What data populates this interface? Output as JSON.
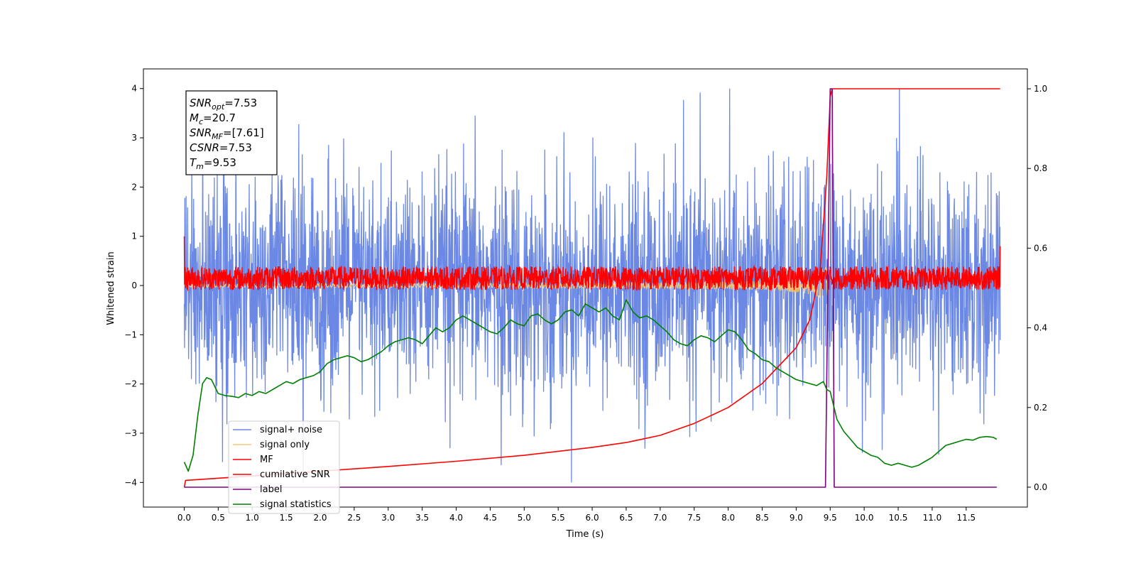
{
  "chart_data": {
    "type": "line",
    "xlabel": "Time (s)",
    "ylabel_left": "Whitened strain",
    "ylim_left": [
      -4.5,
      4.4
    ],
    "ylim_right": [
      -0.05,
      1.05
    ],
    "xlim": [
      -0.6,
      12.4
    ],
    "x_ticks": [
      "0.0",
      "0.5",
      "1.0",
      "1.5",
      "2.0",
      "2.5",
      "3.0",
      "3.5",
      "4.0",
      "4.5",
      "5.0",
      "5.5",
      "6.0",
      "6.5",
      "7.0",
      "7.5",
      "8.0",
      "8.5",
      "9.0",
      "9.5",
      "10.0",
      "10.5",
      "11.0",
      "11.5"
    ],
    "x_tick_values": [
      0.0,
      0.5,
      1.0,
      1.5,
      2.0,
      2.5,
      3.0,
      3.5,
      4.0,
      4.5,
      5.0,
      5.5,
      6.0,
      6.5,
      7.0,
      7.5,
      8.0,
      8.5,
      9.0,
      9.5,
      10.0,
      10.5,
      11.0,
      11.5
    ],
    "y_ticks_left": [
      "4",
      "3",
      "2",
      "1",
      "0",
      "−1",
      "−2",
      "−3",
      "−4"
    ],
    "y_tick_values_left": [
      4,
      3,
      2,
      1,
      0,
      -1,
      -2,
      -3,
      -4
    ],
    "y_ticks_right": [
      "1.0",
      "0.8",
      "0.6",
      "0.4",
      "0.2",
      "0.0"
    ],
    "y_tick_values_right": [
      1.0,
      0.8,
      0.6,
      0.4,
      0.2,
      0.0
    ],
    "legend_location": "bottom-left",
    "annotation": {
      "lines": [
        {
          "main": "SNR",
          "sub": "opt",
          "rest": "=7.53"
        },
        {
          "main": "M",
          "sub": "c",
          "rest": "=20.7"
        },
        {
          "main": "SNR",
          "sub": "MF",
          "rest": "=[7.61]"
        },
        {
          "main": "CSNR",
          "sub": "",
          "rest": "=7.53"
        },
        {
          "main": "T",
          "sub": "m",
          "rest": "=9.53"
        }
      ]
    },
    "series": [
      {
        "name": "signal+ noise",
        "color": "#6b88e4",
        "axis": "left",
        "kind": "noise",
        "x_range": [
          0.0,
          12.0
        ],
        "envelope_abs_max": 4.0,
        "typical_std": 1.1
      },
      {
        "name": "signal only",
        "color": "#f5c97a",
        "axis": "left",
        "kind": "chirp",
        "x_range": [
          0.0,
          9.55
        ],
        "peak_time": 9.5,
        "peak_amplitude": 0.9
      },
      {
        "name": "MF",
        "color": "#ff0000",
        "axis": "left",
        "kind": "noise",
        "x_range": [
          0.0,
          12.0
        ],
        "band": [
          -0.15,
          0.45
        ]
      },
      {
        "name": "cumilative SNR",
        "color": "#ff0000",
        "axis": "right",
        "x": [
          0.0,
          0.02,
          1.0,
          2.0,
          3.0,
          4.0,
          5.0,
          6.0,
          6.5,
          7.0,
          7.5,
          8.0,
          8.5,
          9.0,
          9.2,
          9.35,
          9.45,
          9.5,
          9.53,
          9.6,
          12.0
        ],
        "y": [
          0.0,
          0.017,
          0.028,
          0.04,
          0.052,
          0.065,
          0.08,
          0.1,
          0.112,
          0.13,
          0.16,
          0.2,
          0.26,
          0.35,
          0.42,
          0.54,
          0.78,
          0.98,
          1.0,
          1.0,
          1.0
        ]
      },
      {
        "name": "label",
        "color": "#800080",
        "axis": "right",
        "x": [
          0.0,
          9.43,
          9.5,
          9.53,
          9.56,
          11.0,
          11.95
        ],
        "y": [
          0.0,
          0.0,
          1.0,
          1.0,
          0.0,
          0.0,
          0.0
        ]
      },
      {
        "name": "signal statistics",
        "color": "#008000",
        "axis": "right",
        "x": [
          0.0,
          0.06,
          0.13,
          0.2,
          0.27,
          0.33,
          0.4,
          0.5,
          0.6,
          0.7,
          0.8,
          0.9,
          1.0,
          1.1,
          1.2,
          1.3,
          1.4,
          1.5,
          1.6,
          1.7,
          1.8,
          1.9,
          2.0,
          2.1,
          2.2,
          2.3,
          2.4,
          2.5,
          2.6,
          2.7,
          2.8,
          2.9,
          3.0,
          3.05,
          3.1,
          3.2,
          3.3,
          3.4,
          3.5,
          3.6,
          3.7,
          3.8,
          3.9,
          4.0,
          4.1,
          4.2,
          4.3,
          4.4,
          4.5,
          4.6,
          4.7,
          4.8,
          4.9,
          5.0,
          5.1,
          5.2,
          5.3,
          5.4,
          5.5,
          5.6,
          5.7,
          5.8,
          5.9,
          6.0,
          6.1,
          6.2,
          6.3,
          6.4,
          6.5,
          6.6,
          6.7,
          6.8,
          6.9,
          7.0,
          7.1,
          7.2,
          7.3,
          7.4,
          7.5,
          7.6,
          7.7,
          7.8,
          7.9,
          8.0,
          8.1,
          8.2,
          8.3,
          8.4,
          8.5,
          8.6,
          8.7,
          8.8,
          8.9,
          9.0,
          9.1,
          9.2,
          9.3,
          9.35,
          9.4,
          9.45,
          9.5,
          9.6,
          9.7,
          9.8,
          9.9,
          10.0,
          10.1,
          10.2,
          10.3,
          10.4,
          10.5,
          10.6,
          10.7,
          10.8,
          10.9,
          11.0,
          11.1,
          11.2,
          11.3,
          11.4,
          11.5,
          11.6,
          11.7,
          11.8,
          11.9,
          11.95
        ],
        "y": [
          0.063,
          0.04,
          0.08,
          0.18,
          0.26,
          0.275,
          0.27,
          0.235,
          0.23,
          0.228,
          0.225,
          0.235,
          0.23,
          0.24,
          0.235,
          0.245,
          0.255,
          0.265,
          0.26,
          0.27,
          0.275,
          0.28,
          0.29,
          0.31,
          0.32,
          0.325,
          0.33,
          0.325,
          0.315,
          0.32,
          0.33,
          0.34,
          0.355,
          0.36,
          0.365,
          0.37,
          0.375,
          0.37,
          0.36,
          0.38,
          0.4,
          0.39,
          0.4,
          0.42,
          0.43,
          0.42,
          0.41,
          0.4,
          0.39,
          0.385,
          0.4,
          0.42,
          0.41,
          0.405,
          0.43,
          0.435,
          0.42,
          0.41,
          0.42,
          0.44,
          0.445,
          0.43,
          0.46,
          0.45,
          0.44,
          0.45,
          0.43,
          0.42,
          0.47,
          0.44,
          0.425,
          0.43,
          0.42,
          0.405,
          0.39,
          0.37,
          0.36,
          0.355,
          0.37,
          0.38,
          0.375,
          0.365,
          0.38,
          0.395,
          0.39,
          0.37,
          0.345,
          0.335,
          0.32,
          0.315,
          0.3,
          0.29,
          0.28,
          0.27,
          0.265,
          0.26,
          0.255,
          0.26,
          0.265,
          0.245,
          0.24,
          0.17,
          0.14,
          0.12,
          0.1,
          0.09,
          0.08,
          0.075,
          0.06,
          0.055,
          0.06,
          0.055,
          0.05,
          0.055,
          0.065,
          0.075,
          0.09,
          0.105,
          0.11,
          0.115,
          0.12,
          0.118,
          0.125,
          0.127,
          0.125,
          0.12
        ]
      }
    ]
  }
}
